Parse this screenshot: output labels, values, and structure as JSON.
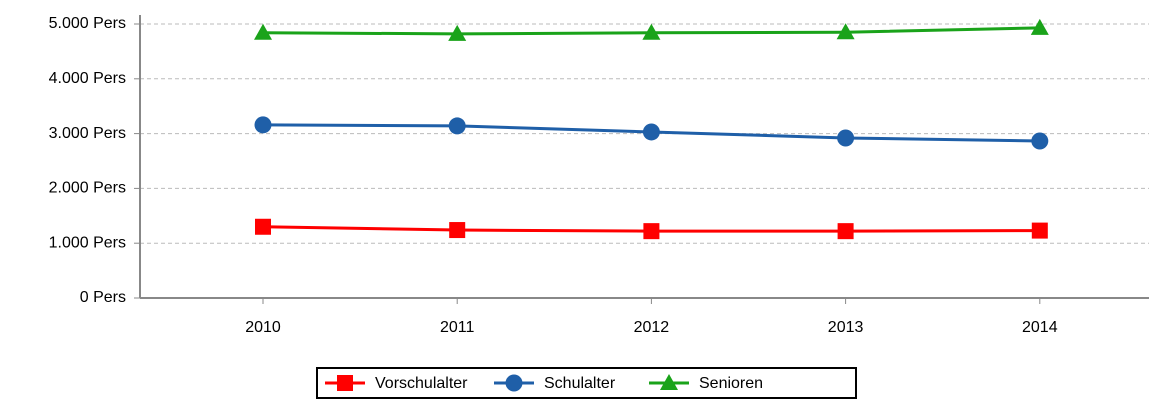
{
  "chart_data": {
    "type": "line",
    "categories": [
      "2010",
      "2011",
      "2012",
      "2013",
      "2014"
    ],
    "series": [
      {
        "name": "Vorschulalter",
        "color": "#ff0000",
        "marker": "square",
        "values": [
          1300,
          1240,
          1220,
          1220,
          1230
        ]
      },
      {
        "name": "Schulalter",
        "color": "#1f5fa8",
        "marker": "circle",
        "values": [
          3160,
          3140,
          3030,
          2920,
          2865
        ]
      },
      {
        "name": "Senioren",
        "color": "#1aa31a",
        "marker": "triangle",
        "values": [
          4840,
          4820,
          4840,
          4850,
          4930
        ]
      }
    ],
    "ylim": [
      0,
      5000
    ],
    "yticks": [
      {
        "value": 0,
        "label": "0 Pers"
      },
      {
        "value": 1000,
        "label": "1.000 Pers"
      },
      {
        "value": 2000,
        "label": "2.000 Pers"
      },
      {
        "value": 3000,
        "label": "3.000 Pers"
      },
      {
        "value": 4000,
        "label": "4.000 Pers"
      },
      {
        "value": 5000,
        "label": "5.000 Pers"
      }
    ],
    "grid": true,
    "legend": "bottom"
  }
}
